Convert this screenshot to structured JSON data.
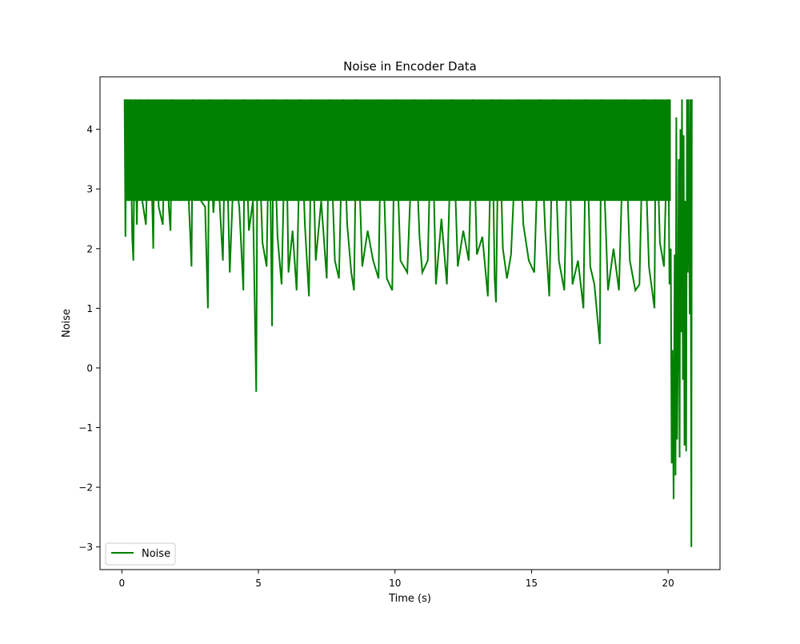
{
  "chart_data": {
    "type": "line",
    "title": "Noise in Encoder Data",
    "xlabel": "Time (s)",
    "ylabel": "Noise",
    "xlim": [
      -0.8,
      21.9
    ],
    "ylim": [
      -3.38,
      4.88
    ],
    "x_ticks": [
      0,
      5,
      10,
      15,
      20
    ],
    "x_tick_labels": [
      "0",
      "5",
      "10",
      "15",
      "20"
    ],
    "y_ticks": [
      -3,
      -2,
      -1,
      0,
      1,
      2,
      3,
      4
    ],
    "y_tick_labels": [
      "−3",
      "−2",
      "−1",
      "0",
      "1",
      "2",
      "3",
      "4"
    ],
    "grid": false,
    "legend": {
      "position": "lower-left",
      "entries": [
        "Noise"
      ]
    },
    "series": [
      {
        "name": "Noise",
        "color": "#008000",
        "band": {
          "x_start": 0.1,
          "x_end": 20.1,
          "upper": 4.5,
          "lower": 2.8
        },
        "points": [
          [
            0.1,
            4.5
          ],
          [
            0.13,
            2.2
          ],
          [
            0.17,
            4.5
          ],
          [
            0.25,
            2.8
          ],
          [
            0.3,
            4.5
          ],
          [
            0.38,
            2.2
          ],
          [
            0.42,
            1.8
          ],
          [
            0.48,
            4.5
          ],
          [
            0.55,
            2.4
          ],
          [
            0.62,
            4.5
          ],
          [
            0.75,
            2.8
          ],
          [
            0.88,
            2.4
          ],
          [
            1.0,
            4.5
          ],
          [
            1.12,
            2.6
          ],
          [
            1.15,
            2.0
          ],
          [
            1.2,
            4.5
          ],
          [
            1.35,
            2.7
          ],
          [
            1.5,
            2.4
          ],
          [
            1.6,
            4.5
          ],
          [
            1.72,
            2.7
          ],
          [
            1.78,
            2.3
          ],
          [
            1.85,
            4.5
          ],
          [
            2.0,
            3.6
          ],
          [
            2.1,
            2.8
          ],
          [
            2.3,
            3.6
          ],
          [
            2.45,
            2.8
          ],
          [
            2.55,
            1.7
          ],
          [
            2.6,
            4.5
          ],
          [
            2.75,
            3.6
          ],
          [
            2.9,
            2.8
          ],
          [
            3.05,
            2.7
          ],
          [
            3.15,
            1.0
          ],
          [
            3.2,
            4.5
          ],
          [
            3.35,
            2.6
          ],
          [
            3.5,
            3.6
          ],
          [
            3.6,
            2.6
          ],
          [
            3.7,
            1.8
          ],
          [
            3.8,
            4.5
          ],
          [
            3.95,
            1.6
          ],
          [
            4.1,
            3.4
          ],
          [
            4.3,
            2.7
          ],
          [
            4.45,
            1.3
          ],
          [
            4.5,
            4.5
          ],
          [
            4.65,
            2.3
          ],
          [
            4.8,
            2.8
          ],
          [
            4.92,
            -0.4
          ],
          [
            4.97,
            4.5
          ],
          [
            5.15,
            2.1
          ],
          [
            5.3,
            1.7
          ],
          [
            5.4,
            4.5
          ],
          [
            5.5,
            0.7
          ],
          [
            5.55,
            4.5
          ],
          [
            5.7,
            2.2
          ],
          [
            5.85,
            1.4
          ],
          [
            6.0,
            4.5
          ],
          [
            6.1,
            1.6
          ],
          [
            6.25,
            2.3
          ],
          [
            6.4,
            1.3
          ],
          [
            6.55,
            4.5
          ],
          [
            6.7,
            2.4
          ],
          [
            6.85,
            1.2
          ],
          [
            6.95,
            4.5
          ],
          [
            7.1,
            1.8
          ],
          [
            7.3,
            2.8
          ],
          [
            7.5,
            1.5
          ],
          [
            7.6,
            4.5
          ],
          [
            7.8,
            1.8
          ],
          [
            7.95,
            1.5
          ],
          [
            8.1,
            4.5
          ],
          [
            8.25,
            2.4
          ],
          [
            8.4,
            1.6
          ],
          [
            8.5,
            1.3
          ],
          [
            8.6,
            4.5
          ],
          [
            8.8,
            1.7
          ],
          [
            9.0,
            2.3
          ],
          [
            9.2,
            1.8
          ],
          [
            9.4,
            1.5
          ],
          [
            9.5,
            4.5
          ],
          [
            9.7,
            1.5
          ],
          [
            9.9,
            1.3
          ],
          [
            10.0,
            4.5
          ],
          [
            10.2,
            1.8
          ],
          [
            10.45,
            1.6
          ],
          [
            10.7,
            4.5
          ],
          [
            10.9,
            2.2
          ],
          [
            11.0,
            1.6
          ],
          [
            11.2,
            1.8
          ],
          [
            11.35,
            4.5
          ],
          [
            11.5,
            1.4
          ],
          [
            11.7,
            2.5
          ],
          [
            11.9,
            1.4
          ],
          [
            12.1,
            4.5
          ],
          [
            12.3,
            1.7
          ],
          [
            12.5,
            2.3
          ],
          [
            12.7,
            1.8
          ],
          [
            12.85,
            4.5
          ],
          [
            13.0,
            1.9
          ],
          [
            13.2,
            2.2
          ],
          [
            13.4,
            1.2
          ],
          [
            13.55,
            4.5
          ],
          [
            13.65,
            1.5
          ],
          [
            13.7,
            1.1
          ],
          [
            13.8,
            4.5
          ],
          [
            13.95,
            2.0
          ],
          [
            14.1,
            1.5
          ],
          [
            14.25,
            1.9
          ],
          [
            14.5,
            4.5
          ],
          [
            14.7,
            2.4
          ],
          [
            14.9,
            1.8
          ],
          [
            15.1,
            1.6
          ],
          [
            15.3,
            4.5
          ],
          [
            15.5,
            2.3
          ],
          [
            15.65,
            1.2
          ],
          [
            15.8,
            4.5
          ],
          [
            16.0,
            1.8
          ],
          [
            16.2,
            1.3
          ],
          [
            16.35,
            4.5
          ],
          [
            16.5,
            1.4
          ],
          [
            16.7,
            1.8
          ],
          [
            16.9,
            1.0
          ],
          [
            17.0,
            4.5
          ],
          [
            17.15,
            1.7
          ],
          [
            17.3,
            1.4
          ],
          [
            17.5,
            0.4
          ],
          [
            17.55,
            4.5
          ],
          [
            17.8,
            1.3
          ],
          [
            18.0,
            2.0
          ],
          [
            18.2,
            1.3
          ],
          [
            18.4,
            4.5
          ],
          [
            18.6,
            1.8
          ],
          [
            18.8,
            1.3
          ],
          [
            18.95,
            1.4
          ],
          [
            19.1,
            4.5
          ],
          [
            19.3,
            1.7
          ],
          [
            19.5,
            1.0
          ],
          [
            19.55,
            4.5
          ],
          [
            19.7,
            2.1
          ],
          [
            19.85,
            1.7
          ],
          [
            20.0,
            4.5
          ],
          [
            20.05,
            1.4
          ],
          [
            20.1,
            2.0
          ],
          [
            20.13,
            -1.6
          ],
          [
            20.16,
            0.3
          ],
          [
            20.2,
            -2.2
          ],
          [
            20.24,
            1.9
          ],
          [
            20.27,
            -1.8
          ],
          [
            20.3,
            4.2
          ],
          [
            20.33,
            -1.2
          ],
          [
            20.36,
            0.4
          ],
          [
            20.39,
            3.5
          ],
          [
            20.42,
            -1.5
          ],
          [
            20.45,
            4.0
          ],
          [
            20.48,
            0.6
          ],
          [
            20.51,
            4.5
          ],
          [
            20.54,
            -0.2
          ],
          [
            20.57,
            3.9
          ],
          [
            20.6,
            -1.3
          ],
          [
            20.63,
            2.8
          ],
          [
            20.66,
            -1.4
          ],
          [
            20.69,
            4.5
          ],
          [
            20.72,
            1.6
          ],
          [
            20.75,
            4.5
          ],
          [
            20.79,
            0.9
          ],
          [
            20.82,
            4.5
          ],
          [
            20.85,
            -3.0
          ],
          [
            20.87,
            4.5
          ]
        ]
      }
    ]
  }
}
